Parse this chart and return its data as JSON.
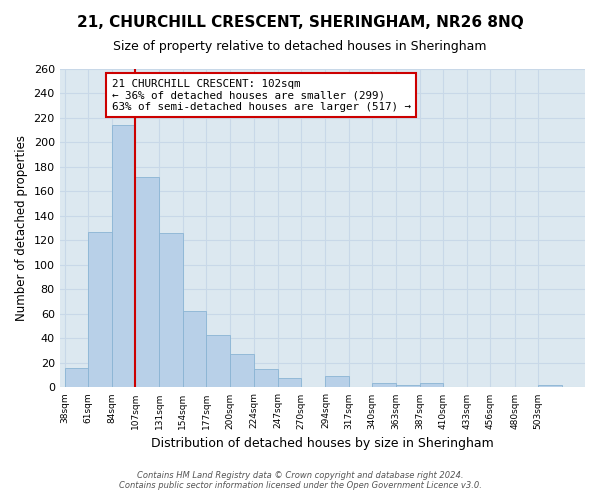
{
  "title": "21, CHURCHILL CRESCENT, SHERINGHAM, NR26 8NQ",
  "subtitle": "Size of property relative to detached houses in Sheringham",
  "xlabel": "Distribution of detached houses by size in Sheringham",
  "ylabel": "Number of detached properties",
  "bar_color": "#b8d0e8",
  "bar_edge_color": "#8ab4d4",
  "grid_color": "#c8d8e8",
  "plot_bg_color": "#dce8f0",
  "fig_bg_color": "#ffffff",
  "bin_labels": [
    "38sqm",
    "61sqm",
    "84sqm",
    "107sqm",
    "131sqm",
    "154sqm",
    "177sqm",
    "200sqm",
    "224sqm",
    "247sqm",
    "270sqm",
    "294sqm",
    "317sqm",
    "340sqm",
    "363sqm",
    "387sqm",
    "410sqm",
    "433sqm",
    "456sqm",
    "480sqm",
    "503sqm"
  ],
  "bin_edges": [
    38,
    61,
    84,
    107,
    131,
    154,
    177,
    200,
    224,
    247,
    270,
    294,
    317,
    340,
    363,
    387,
    410,
    433,
    456,
    480,
    503,
    526
  ],
  "counts": [
    16,
    127,
    214,
    172,
    126,
    62,
    43,
    27,
    15,
    8,
    0,
    9,
    0,
    4,
    2,
    4,
    0,
    0,
    0,
    0,
    2
  ],
  "red_line_x": 107,
  "annotation_title": "21 CHURCHILL CRESCENT: 102sqm",
  "annotation_line1": "← 36% of detached houses are smaller (299)",
  "annotation_line2": "63% of semi-detached houses are larger (517) →",
  "annotation_box_color": "#ffffff",
  "annotation_border_color": "#cc0000",
  "red_line_color": "#cc0000",
  "ylim": [
    0,
    260
  ],
  "yticks": [
    0,
    20,
    40,
    60,
    80,
    100,
    120,
    140,
    160,
    180,
    200,
    220,
    240,
    260
  ],
  "footer_line1": "Contains HM Land Registry data © Crown copyright and database right 2024.",
  "footer_line2": "Contains public sector information licensed under the Open Government Licence v3.0."
}
